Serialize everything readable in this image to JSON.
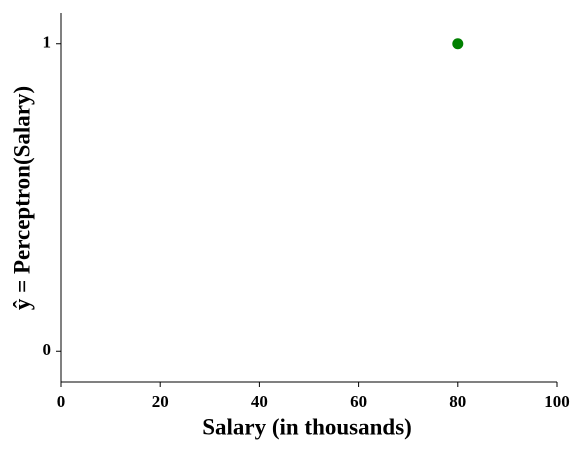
{
  "chart_data": {
    "type": "scatter",
    "xlabel": "Salary (in thousands)",
    "ylabel": "ŷ = Perceptron(Salary)",
    "series": [
      {
        "color": "#008000",
        "x": [
          80
        ],
        "values": [
          1
        ]
      }
    ],
    "xlim": [
      0,
      100
    ],
    "xticks": [
      0,
      20,
      40,
      60,
      80,
      100
    ],
    "ylim": [
      -0.1,
      1.1
    ],
    "yticks": [
      0,
      1
    ],
    "grid": false
  }
}
